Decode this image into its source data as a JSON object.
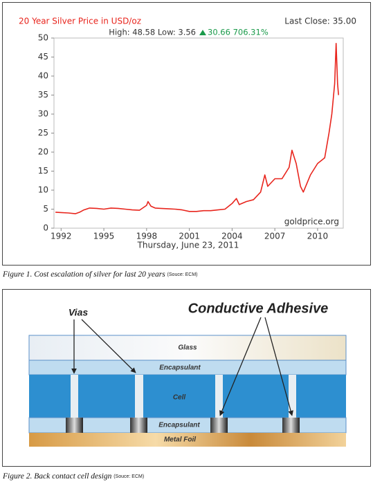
{
  "chart_data": {
    "type": "line",
    "title": "20 Year Silver Price in USD/oz",
    "last_close": "Last Close: 35.00",
    "high_low": "High: 48.58 Low: 3.56",
    "change": "30.66 706.31%",
    "date": "Thursday, June 23, 2011",
    "watermark": "goldprice.org",
    "x": [
      1991.6,
      1992,
      1992.5,
      1993,
      1993.3,
      1993.6,
      1994,
      1994.5,
      1995,
      1995.5,
      1996,
      1996.5,
      1997,
      1997.5,
      1998,
      1998.1,
      1998.3,
      1998.6,
      1999,
      1999.5,
      2000,
      2000.5,
      2001,
      2001.5,
      2002,
      2002.5,
      2003,
      2003.5,
      2004,
      2004.3,
      2004.5,
      2005,
      2005.5,
      2006,
      2006.3,
      2006.5,
      2007,
      2007.5,
      2008,
      2008.2,
      2008.5,
      2008.8,
      2009,
      2009.5,
      2010,
      2010.5,
      2010.8,
      2011,
      2011.2,
      2011.3,
      2011.4,
      2011.47
    ],
    "series": [
      {
        "name": "Silver",
        "color": "#e8241c",
        "values": [
          4.2,
          4.1,
          4.0,
          3.8,
          4.2,
          4.8,
          5.3,
          5.2,
          5.0,
          5.3,
          5.2,
          5.0,
          4.8,
          4.7,
          6.0,
          7.0,
          5.8,
          5.3,
          5.2,
          5.1,
          5.0,
          4.8,
          4.4,
          4.4,
          4.6,
          4.6,
          4.8,
          5.0,
          6.5,
          7.8,
          6.2,
          7.0,
          7.5,
          9.5,
          14.0,
          11.0,
          13.0,
          13.0,
          16.0,
          20.5,
          17.0,
          11.0,
          9.5,
          14.0,
          17.0,
          18.5,
          25.0,
          30.0,
          38.0,
          48.58,
          38.0,
          35.0
        ]
      }
    ],
    "xlim": [
      1991.5,
      2011.8
    ],
    "ylim": [
      0,
      50
    ],
    "xticks": [
      1992,
      1995,
      1998,
      2001,
      2004,
      2007,
      2010
    ],
    "yticks": [
      0,
      5,
      10,
      15,
      20,
      25,
      30,
      35,
      40,
      45,
      50
    ],
    "grid": false
  },
  "figure1": {
    "caption": "Figure 1. Cost escalation of silver for last 20 years",
    "source": "(Souce: ECM)"
  },
  "figure2": {
    "vias": "Vias",
    "adhesive": "Conductive Adhesive",
    "glass": "Glass",
    "encapsulant_top": "Encapsulant",
    "cell": "Cell",
    "encapsulant_bottom": "Encapsulant",
    "foil": "Metal Foil",
    "caption": "Figure 2. Back contact cell design",
    "source": "(Souce: ECM)"
  }
}
